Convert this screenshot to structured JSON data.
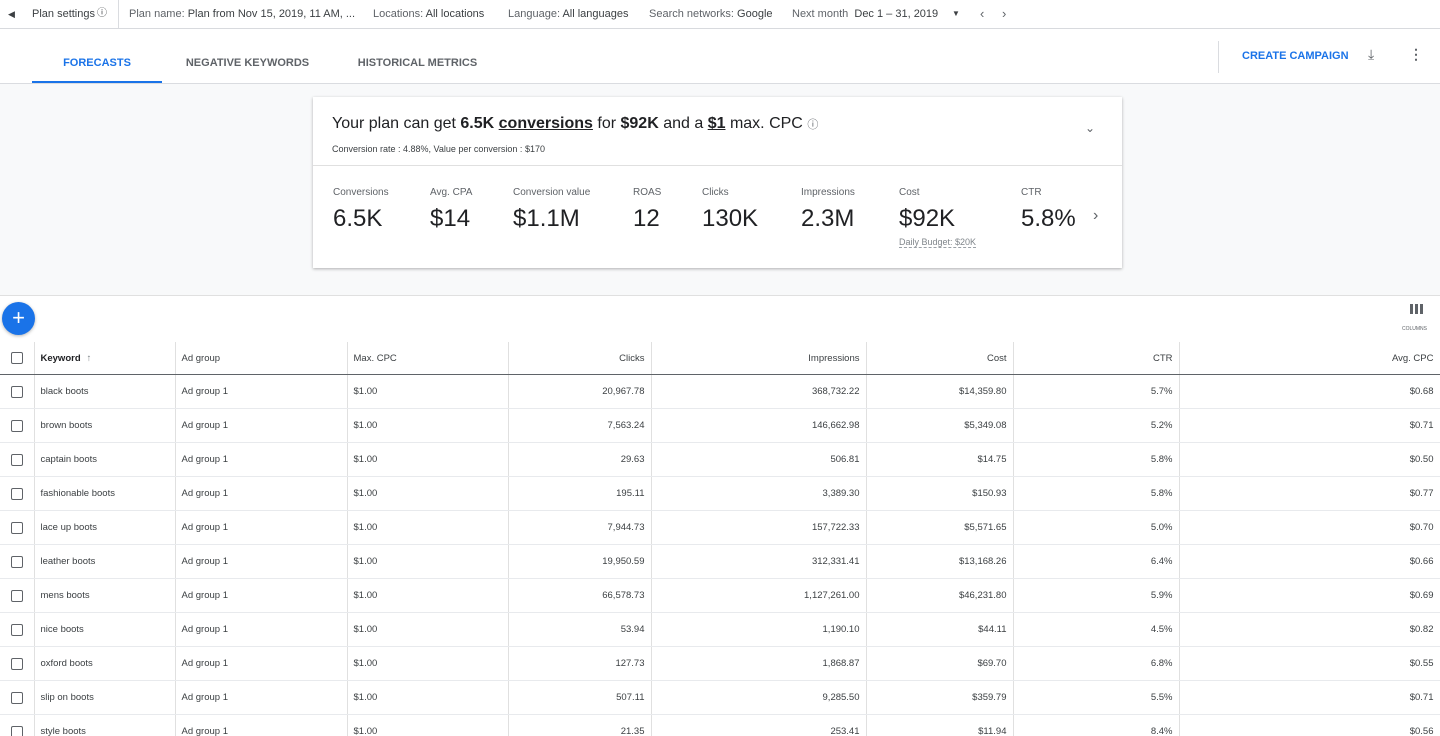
{
  "top_bar": {
    "plan_settings": "Plan settings",
    "plan_name_label": "Plan name:",
    "plan_name": "Plan from Nov 15, 2019, 11 AM, ...",
    "locations_label": "Locations:",
    "locations": "All locations",
    "language_label": "Language:",
    "language": "All languages",
    "networks_label": "Search networks:",
    "networks": "Google",
    "period_label": "Next month",
    "period": "Dec 1 – 31, 2019"
  },
  "tabs": [
    "FORECASTS",
    "NEGATIVE KEYWORDS",
    "HISTORICAL METRICS"
  ],
  "create_campaign": "CREATE CAMPAIGN",
  "summary": {
    "text_1": "Your plan can get",
    "conversions_value": "6.5K",
    "conversions_link": "conversions",
    "text_2": "for",
    "cost": "$92K",
    "text_3": "and a",
    "max_cpc": "$1",
    "text_4": "max. CPC",
    "subtitle": "Conversion rate : 4.88%, Value per conversion : $170",
    "metrics": [
      {
        "label": "Conversions",
        "value": "6.5K"
      },
      {
        "label": "Avg. CPA",
        "value": "$14"
      },
      {
        "label": "Conversion value",
        "value": "$1.1M"
      },
      {
        "label": "ROAS",
        "value": "12"
      },
      {
        "label": "Clicks",
        "value": "130K"
      },
      {
        "label": "Impressions",
        "value": "2.3M"
      },
      {
        "label": "Cost",
        "value": "$92K",
        "note": "Daily Budget: $20K"
      },
      {
        "label": "CTR",
        "value": "5.8%"
      }
    ]
  },
  "table": {
    "columns_label": "COLUMNS",
    "headers": [
      "Keyword",
      "Ad group",
      "Max. CPC",
      "Clicks",
      "Impressions",
      "Cost",
      "CTR",
      "Avg. CPC"
    ],
    "rows": [
      [
        "black boots",
        "Ad group 1",
        "$1.00",
        "20,967.78",
        "368,732.22",
        "$14,359.80",
        "5.7%",
        "$0.68"
      ],
      [
        "brown boots",
        "Ad group 1",
        "$1.00",
        "7,563.24",
        "146,662.98",
        "$5,349.08",
        "5.2%",
        "$0.71"
      ],
      [
        "captain boots",
        "Ad group 1",
        "$1.00",
        "29.63",
        "506.81",
        "$14.75",
        "5.8%",
        "$0.50"
      ],
      [
        "fashionable boots",
        "Ad group 1",
        "$1.00",
        "195.11",
        "3,389.30",
        "$150.93",
        "5.8%",
        "$0.77"
      ],
      [
        "lace up boots",
        "Ad group 1",
        "$1.00",
        "7,944.73",
        "157,722.33",
        "$5,571.65",
        "5.0%",
        "$0.70"
      ],
      [
        "leather boots",
        "Ad group 1",
        "$1.00",
        "19,950.59",
        "312,331.41",
        "$13,168.26",
        "6.4%",
        "$0.66"
      ],
      [
        "mens boots",
        "Ad group 1",
        "$1.00",
        "66,578.73",
        "1,127,261.00",
        "$46,231.80",
        "5.9%",
        "$0.69"
      ],
      [
        "nice boots",
        "Ad group 1",
        "$1.00",
        "53.94",
        "1,190.10",
        "$44.11",
        "4.5%",
        "$0.82"
      ],
      [
        "oxford boots",
        "Ad group 1",
        "$1.00",
        "127.73",
        "1,868.87",
        "$69.70",
        "6.8%",
        "$0.55"
      ],
      [
        "slip on boots",
        "Ad group 1",
        "$1.00",
        "507.11",
        "9,285.50",
        "$359.79",
        "5.5%",
        "$0.71"
      ],
      [
        "style boots",
        "Ad group 1",
        "$1.00",
        "21.35",
        "253.41",
        "$11.94",
        "8.4%",
        "$0.56"
      ]
    ]
  }
}
